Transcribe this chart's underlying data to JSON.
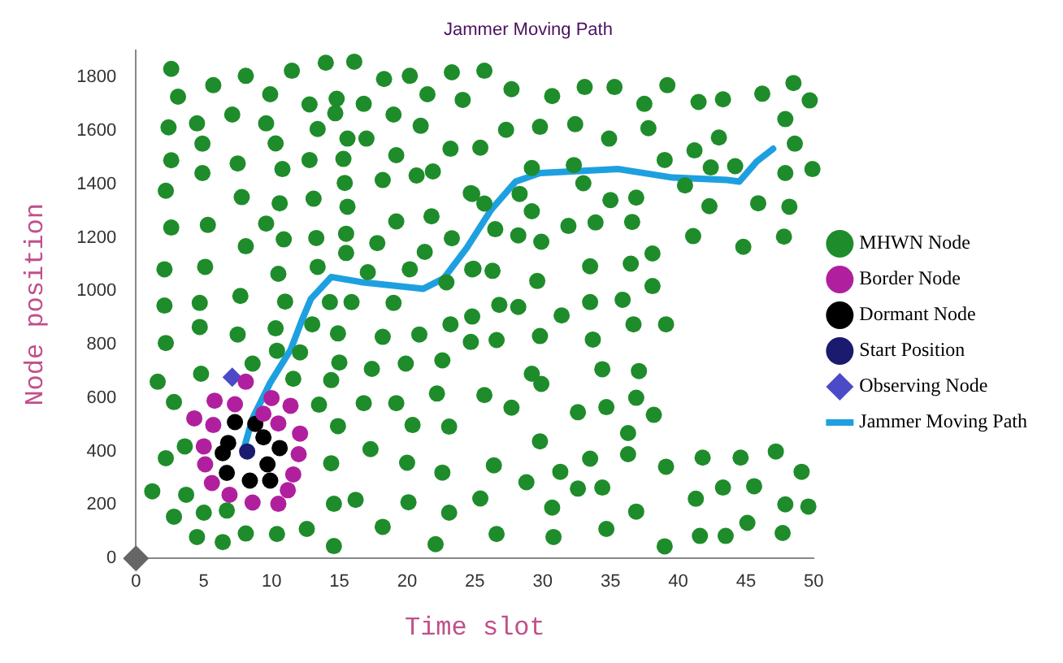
{
  "chart_data": {
    "type": "scatter",
    "title": "Jammer Moving Path",
    "xlabel": "Time slot",
    "ylabel": "Node position",
    "xlim": [
      0,
      50
    ],
    "ylim": [
      0,
      1900
    ],
    "xticks": [
      0,
      5,
      10,
      15,
      20,
      25,
      30,
      35,
      40,
      45,
      50
    ],
    "yticks": [
      0,
      200,
      400,
      600,
      800,
      1000,
      1200,
      1400,
      1600,
      1800
    ],
    "grid": false,
    "legend": "right",
    "series": [
      {
        "name": "MHWN Node",
        "color": "#1e8c2a",
        "marker": "circle",
        "x": [
          2.6,
          5.7,
          8.1,
          11.5,
          14.0,
          16.1,
          18.3,
          20.2,
          23.3,
          3.1,
          9.9,
          12.8,
          14.8,
          16.8,
          21.5,
          24.1,
          2.4,
          4.5,
          7.1,
          9.6,
          14.7,
          13.4,
          19.0,
          21.0,
          4.9,
          10.3,
          15.6,
          17.0,
          23.2,
          2.6,
          4.9,
          7.5,
          10.8,
          12.8,
          15.3,
          19.2,
          20.7,
          21.9,
          2.2,
          7.8,
          10.6,
          13.1,
          15.4,
          15.6,
          18.2,
          24.7,
          2.6,
          5.3,
          9.6,
          8.1,
          10.9,
          13.3,
          15.5,
          17.8,
          19.2,
          21.8,
          21.3,
          23.3,
          2.1,
          5.1,
          10.5,
          13.4,
          15.5,
          17.1,
          20.2,
          24.8,
          22.9,
          2.1,
          4.7,
          7.7,
          11.0,
          14.3,
          15.9,
          19.0,
          24.8,
          25.7,
          27.7,
          30.7,
          33.1,
          35.3,
          39.2,
          37.5,
          41.5,
          43.3,
          46.2,
          48.5,
          49.7,
          27.3,
          29.8,
          32.4,
          37.8,
          34.9,
          43.0,
          47.9,
          48.6,
          25.4,
          29.2,
          32.3,
          39.0,
          41.2,
          42.4,
          44.2,
          47.9,
          49.9,
          33.0,
          40.5,
          24.8,
          25.7,
          28.3,
          29.2,
          35.0,
          36.9,
          42.3,
          45.9,
          48.2,
          26.5,
          28.2,
          29.9,
          31.9,
          33.9,
          36.6,
          41.1,
          44.8,
          47.8,
          24.9,
          26.3,
          29.6,
          33.5,
          36.5,
          38.1,
          38.1,
          26.8,
          28.2,
          31.4,
          33.5,
          35.9,
          29.2,
          29.9,
          34.4,
          37.1,
          25.7,
          27.7,
          32.6,
          34.7,
          36.9,
          38.2,
          36.3,
          29.8,
          26.4,
          33.5,
          36.3,
          39.1,
          41.8,
          44.6,
          47.2,
          49.1,
          28.8,
          31.3,
          32.6,
          34.4,
          43.3,
          45.6,
          25.4,
          30.7,
          36.9,
          41.3,
          47.9,
          49.6,
          26.6,
          30.8,
          34.7,
          39.0,
          41.6,
          43.5,
          45.1,
          47.7,
          33.7,
          29.8,
          26.6,
          24.7,
          36.7,
          39.1,
          4.7,
          7.5,
          10.3,
          13.0,
          14.9,
          18.2,
          20.9,
          23.2,
          2.2,
          10.4,
          12.1,
          8.6,
          15.0,
          17.4,
          19.9,
          22.6,
          1.6,
          4.8,
          11.6,
          14.4,
          22.2,
          2.8,
          13.5,
          16.8,
          19.2,
          14.9,
          20.4,
          23.1,
          3.6,
          2.2,
          14.4,
          17.3,
          20.0,
          22.6,
          1.2,
          3.7,
          2.8,
          5.0,
          6.7,
          14.6,
          16.2,
          20.1,
          23.1,
          4.5,
          6.4,
          8.1,
          10.4,
          12.6,
          14.6,
          18.2,
          22.1
        ],
        "values": [
          1832,
          1771,
          1806,
          1825,
          1855,
          1859,
          1794,
          1806,
          1819,
          1728,
          1737,
          1699,
          1720,
          1701,
          1737,
          1716,
          1613,
          1628,
          1661,
          1628,
          1666,
          1607,
          1661,
          1619,
          1552,
          1553,
          1571,
          1571,
          1533,
          1490,
          1442,
          1478,
          1457,
          1491,
          1495,
          1509,
          1433,
          1448,
          1376,
          1352,
          1329,
          1346,
          1405,
          1316,
          1416,
          1367,
          1238,
          1248,
          1253,
          1168,
          1194,
          1199,
          1215,
          1180,
          1261,
          1280,
          1147,
          1198,
          1082,
          1091,
          1065,
          1091,
          1143,
          1071,
          1082,
          1082,
          1033,
          946,
          956,
          982,
          961,
          959,
          959,
          956,
          905,
          1825,
          1756,
          1730,
          1764,
          1764,
          1771,
          1701,
          1708,
          1718,
          1739,
          1779,
          1714,
          1604,
          1615,
          1625,
          1610,
          1571,
          1575,
          1644,
          1552,
          1537,
          1461,
          1472,
          1491,
          1527,
          1463,
          1468,
          1442,
          1457,
          1404,
          1396,
          1364,
          1328,
          1364,
          1299,
          1341,
          1350,
          1318,
          1329,
          1316,
          1232,
          1209,
          1185,
          1244,
          1257,
          1259,
          1206,
          1166,
          1204,
          1084,
          1076,
          1038,
          1093,
          1103,
          1141,
          1019,
          949,
          941,
          909,
          959,
          968,
          691,
          653,
          708,
          701,
          611,
          564,
          547,
          566,
          601,
          537,
          469,
          438,
          348,
          373,
          390,
          343,
          377,
          377,
          400,
          324,
          285,
          324,
          261,
          265,
          265,
          270,
          224,
          190,
          175,
          223,
          202,
          194,
          91,
          80,
          110,
          45,
          84,
          84,
          133,
          95,
          819,
          832,
          817,
          810,
          876,
          876,
          866,
          838,
          861,
          876,
          842,
          829,
          838,
          876,
          806,
          777,
          771,
          729,
          733,
          709,
          729,
          741,
          661,
          691,
          672,
          667,
          617,
          585,
          575,
          581,
          581,
          495,
          499,
          493,
          419,
          375,
          356,
          409,
          358,
          321,
          251,
          238,
          156,
          171,
          179,
          204,
          219,
          210,
          171,
          80,
          61,
          93,
          91,
          110,
          46,
          118,
          53
        ]
      },
      {
        "name": "Border Node",
        "color": "#b0209e",
        "marker": "circle",
        "x": [
          8.1,
          5.8,
          7.3,
          10.0,
          11.4,
          4.3,
          5.7,
          9.4,
          10.5,
          12.1,
          5.0,
          12.0,
          5.1,
          11.6,
          5.6,
          11.2,
          6.9,
          8.6,
          10.5
        ],
        "values": [
          661,
          590,
          577,
          600,
          571,
          524,
          499,
          541,
          505,
          467,
          419,
          390,
          352,
          314,
          282,
          255,
          238,
          209,
          204
        ]
      },
      {
        "name": "Dormant Node",
        "color": "#000000",
        "marker": "circle",
        "x": [
          7.3,
          8.8,
          9.4,
          6.8,
          10.6,
          6.4,
          9.7,
          6.7,
          8.4,
          9.9
        ],
        "values": [
          510,
          503,
          453,
          432,
          413,
          394,
          352,
          320,
          291,
          291
        ]
      },
      {
        "name": "Start Position",
        "color": "#1a1a6e",
        "marker": "circle",
        "x": [
          8.2
        ],
        "values": [
          400
        ]
      },
      {
        "name": "Observing Node",
        "color": "#4b4bc8",
        "marker": "diamond",
        "x": [
          7.1
        ],
        "values": [
          678
        ]
      },
      {
        "color": "#666666",
        "marker": "diamond",
        "x": [
          0
        ],
        "values": [
          0
        ]
      },
      {
        "name": "Jammer Moving Path",
        "type": "line",
        "color": "#1ea0e0",
        "marker": "none",
        "x": [
          7.9,
          8.6,
          9.9,
          11.4,
          12.2,
          12.9,
          14.4,
          16.6,
          21.2,
          22.7,
          24.4,
          26.2,
          28.0,
          29.8,
          35.6,
          39.6,
          43.6,
          44.5,
          45.8,
          47.0
        ],
        "values": [
          400,
          524,
          657,
          780,
          886,
          971,
          1053,
          1034,
          1009,
          1048,
          1162,
          1305,
          1410,
          1442,
          1457,
          1425,
          1416,
          1410,
          1486,
          1533
        ]
      }
    ]
  }
}
